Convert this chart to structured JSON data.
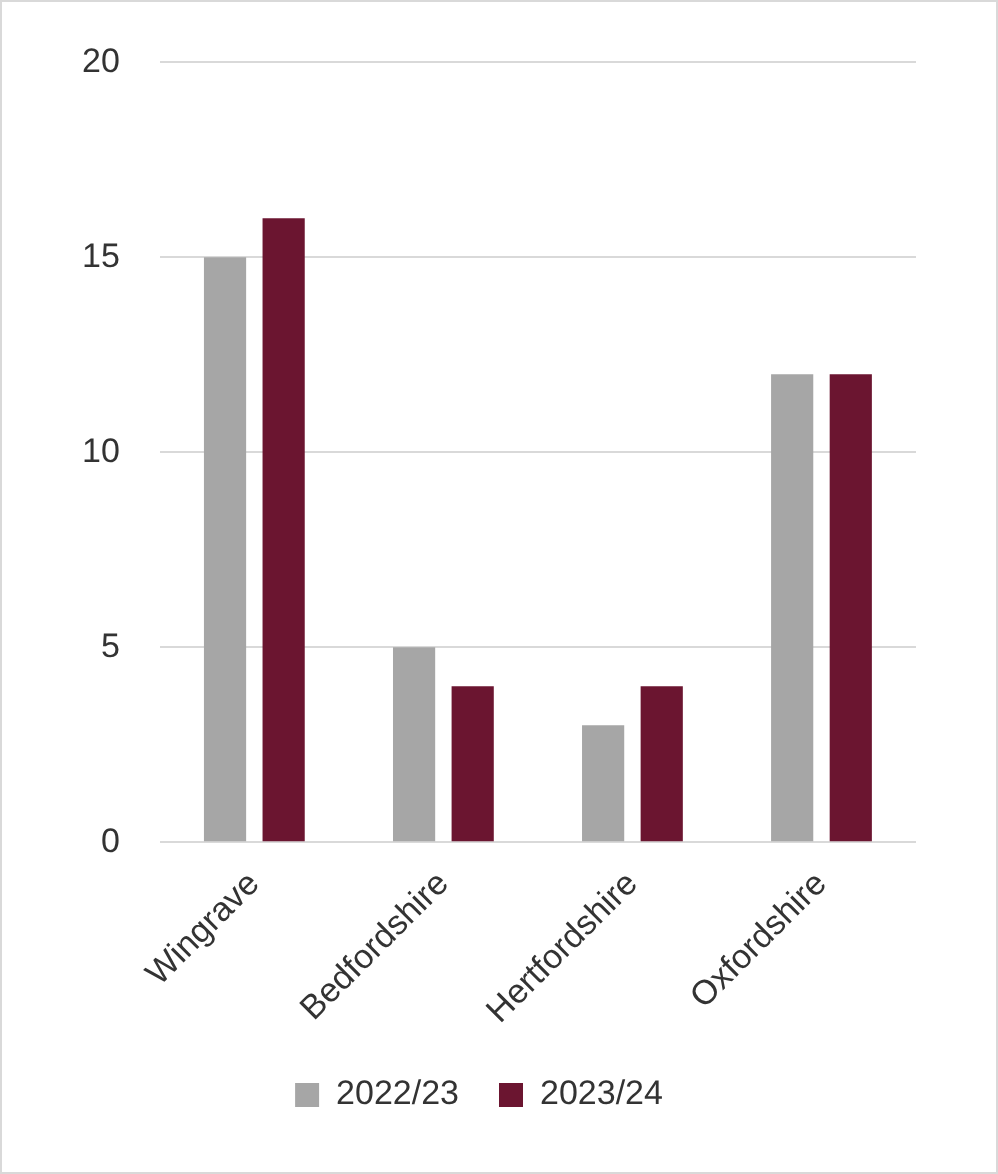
{
  "chart_data": {
    "type": "bar",
    "categories": [
      "Wingrave",
      "Bedfordshire",
      "Hertfordshire",
      "Oxfordshire"
    ],
    "series": [
      {
        "name": "2022/23",
        "color": "#a6a6a6",
        "values": [
          15,
          5,
          3,
          12
        ]
      },
      {
        "name": "2023/24",
        "color": "#6b1530",
        "values": [
          16,
          4,
          4,
          12
        ]
      }
    ],
    "ylim": [
      0,
      20
    ],
    "yticks": [
      0,
      5,
      10,
      15,
      20
    ],
    "grid": "y",
    "legend": "bottom"
  }
}
